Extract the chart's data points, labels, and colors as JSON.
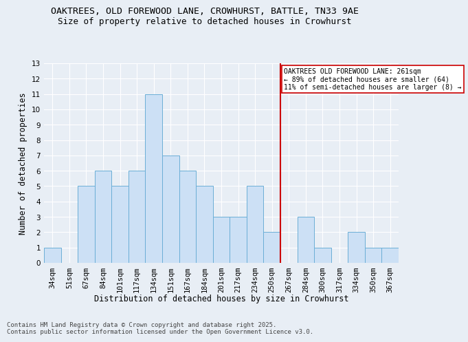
{
  "title_line1": "OAKTREES, OLD FOREWOOD LANE, CROWHURST, BATTLE, TN33 9AE",
  "title_line2": "Size of property relative to detached houses in Crowhurst",
  "xlabel": "Distribution of detached houses by size in Crowhurst",
  "ylabel": "Number of detached properties",
  "categories": [
    "34sqm",
    "51sqm",
    "67sqm",
    "84sqm",
    "101sqm",
    "117sqm",
    "134sqm",
    "151sqm",
    "167sqm",
    "184sqm",
    "201sqm",
    "217sqm",
    "234sqm",
    "250sqm",
    "267sqm",
    "284sqm",
    "300sqm",
    "317sqm",
    "334sqm",
    "350sqm",
    "367sqm"
  ],
  "values": [
    1,
    0,
    5,
    6,
    5,
    6,
    11,
    7,
    6,
    5,
    3,
    3,
    5,
    2,
    0,
    3,
    1,
    0,
    2,
    1,
    1
  ],
  "bar_color": "#cce0f5",
  "bar_edge_color": "#6baed6",
  "red_line_color": "#cc0000",
  "red_line_x": 13.5,
  "annotation_text": "OAKTREES OLD FOREWOOD LANE: 261sqm\n← 89% of detached houses are smaller (64)\n11% of semi-detached houses are larger (8) →",
  "ylim": [
    0,
    13
  ],
  "yticks": [
    0,
    1,
    2,
    3,
    4,
    5,
    6,
    7,
    8,
    9,
    10,
    11,
    12,
    13
  ],
  "background_color": "#e8eef5",
  "footer": "Contains HM Land Registry data © Crown copyright and database right 2025.\nContains public sector information licensed under the Open Government Licence v3.0.",
  "title_fontsize": 9.5,
  "subtitle_fontsize": 9,
  "axis_label_fontsize": 8.5,
  "tick_fontsize": 7.5,
  "annotation_fontsize": 7,
  "footer_fontsize": 6.5
}
